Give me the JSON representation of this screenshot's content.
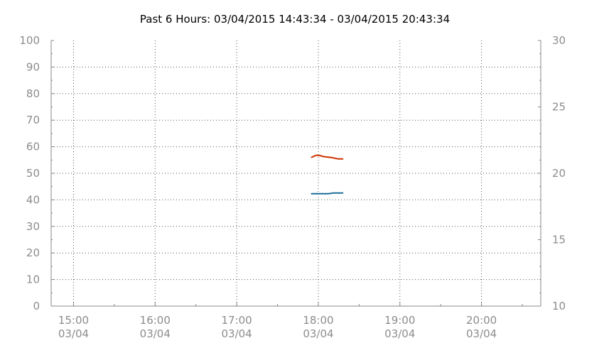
{
  "chart_data": {
    "type": "line",
    "title": "Past 6 Hours: 03/04/2015 14:43:34 - 03/04/2015 20:43:34",
    "x_range": [
      "14:43:34",
      "20:43:34"
    ],
    "x_ticks": [
      {
        "time": "15:00",
        "date": "03/04"
      },
      {
        "time": "16:00",
        "date": "03/04"
      },
      {
        "time": "17:00",
        "date": "03/04"
      },
      {
        "time": "18:00",
        "date": "03/04"
      },
      {
        "time": "19:00",
        "date": "03/04"
      },
      {
        "time": "20:00",
        "date": "03/04"
      }
    ],
    "y_left": {
      "range": [
        0,
        100
      ],
      "ticks": [
        "0",
        "10",
        "20",
        "30",
        "40",
        "50",
        "60",
        "70",
        "80",
        "90",
        "100"
      ]
    },
    "y_right": {
      "range": [
        10,
        30
      ],
      "ticks": [
        "10",
        "15",
        "20",
        "25",
        "30"
      ]
    },
    "grid": true,
    "series": [
      {
        "axis": "left",
        "color": "#cc3300",
        "points": [
          [
            "17:55",
            56.0
          ],
          [
            "17:57",
            56.5
          ],
          [
            "17:59",
            56.8
          ],
          [
            "18:01",
            56.7
          ],
          [
            "18:03",
            56.4
          ],
          [
            "18:05",
            56.2
          ],
          [
            "18:07",
            56.1
          ],
          [
            "18:09",
            56.0
          ],
          [
            "18:11",
            55.8
          ],
          [
            "18:13",
            55.6
          ],
          [
            "18:15",
            55.4
          ],
          [
            "18:18",
            55.4
          ]
        ]
      },
      {
        "axis": "left",
        "color": "#1a6e99",
        "points": [
          [
            "17:55",
            42.3
          ],
          [
            "17:59",
            42.3
          ],
          [
            "18:03",
            42.3
          ],
          [
            "18:07",
            42.3
          ],
          [
            "18:09",
            42.4
          ],
          [
            "18:11",
            42.6
          ],
          [
            "18:15",
            42.6
          ],
          [
            "18:18",
            42.6
          ]
        ]
      }
    ]
  }
}
